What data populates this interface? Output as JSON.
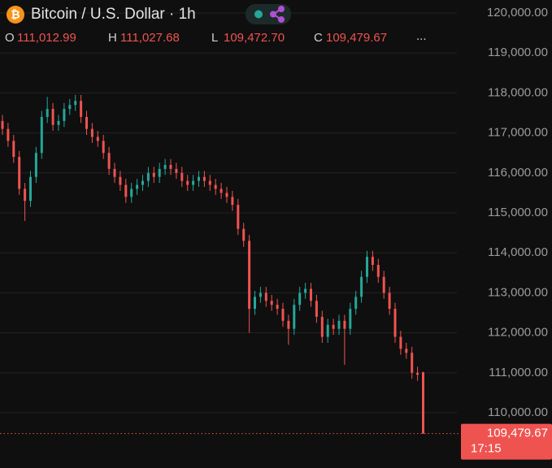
{
  "chart_data": {
    "type": "candlestick",
    "title": "Bitcoin / U.S. Dollar · 1h",
    "ohlc_legend": [
      {
        "key": "O",
        "value": "111,012.99"
      },
      {
        "key": "H",
        "value": "111,027.68"
      },
      {
        "key": "L",
        "value": "109,472.70"
      },
      {
        "key": "C",
        "value": "109,479.67"
      }
    ],
    "more": "...",
    "up_color": "#26a69a",
    "down_color": "#ef5350",
    "grid": true,
    "ylim": [
      108720,
      120325
    ],
    "yticks": [
      {
        "value": 110000,
        "label": "110,000.00"
      },
      {
        "value": 111000,
        "label": "111,000.00"
      },
      {
        "value": 112000,
        "label": "112,000.00"
      },
      {
        "value": 113000,
        "label": "113,000.00"
      },
      {
        "value": 114000,
        "label": "114,000.00"
      },
      {
        "value": 115000,
        "label": "115,000.00"
      },
      {
        "value": 116000,
        "label": "116,000.00"
      },
      {
        "value": 117000,
        "label": "117,000.00"
      },
      {
        "value": 118000,
        "label": "118,000.00"
      },
      {
        "value": 119000,
        "label": "119,000.00"
      },
      {
        "value": 120000,
        "label": "120,000.00"
      }
    ],
    "last_price": {
      "value": 109479.67,
      "label": "109,479.67"
    },
    "last_time": "17:15",
    "open": [
      117300,
      117100,
      116800,
      116400,
      115600,
      115300,
      115900,
      116500,
      117400,
      117600,
      117200,
      117300,
      117600,
      117700,
      117800,
      117400,
      117100,
      116900,
      116800,
      116500,
      116100,
      115900,
      115700,
      115400,
      115600,
      115700,
      115800,
      116000,
      115900,
      116100,
      116200,
      116100,
      116000,
      115800,
      115700,
      115800,
      115900,
      115800,
      115700,
      115600,
      115500,
      115400,
      115200,
      114600,
      114300,
      112600,
      112900,
      113000,
      112800,
      112700,
      112600,
      112300,
      112100,
      112700,
      113000,
      113100,
      112800,
      112400,
      111900,
      112200,
      112100,
      112300,
      112100,
      112600,
      112900,
      113400,
      113900,
      113700,
      113400,
      113000,
      112600,
      111900,
      111600,
      111500,
      111000,
      111012.99
    ],
    "high": [
      117450,
      117250,
      116950,
      116550,
      115750,
      116050,
      116650,
      117550,
      117900,
      117750,
      117450,
      117750,
      117850,
      117950,
      117950,
      117550,
      117250,
      117050,
      116950,
      116650,
      116250,
      116050,
      115850,
      115750,
      115850,
      115950,
      116150,
      116150,
      116250,
      116350,
      116350,
      116250,
      116150,
      115950,
      115950,
      116050,
      116050,
      115950,
      115850,
      115750,
      115650,
      115550,
      115350,
      114750,
      114450,
      113050,
      113150,
      113150,
      112950,
      112850,
      112750,
      112450,
      112850,
      113150,
      113250,
      113250,
      112950,
      112550,
      112350,
      112350,
      112450,
      112450,
      112750,
      113050,
      113550,
      114050,
      114050,
      113850,
      113550,
      113150,
      112750,
      112050,
      111750,
      111650,
      111150,
      111027.68
    ],
    "low": [
      116950,
      116650,
      116250,
      115450,
      114800,
      115150,
      115750,
      116350,
      117250,
      117050,
      117050,
      117150,
      117450,
      117550,
      117250,
      116950,
      116750,
      116650,
      116350,
      115950,
      115750,
      115550,
      115250,
      115250,
      115450,
      115550,
      115650,
      115750,
      115750,
      115950,
      115950,
      115850,
      115650,
      115550,
      115550,
      115650,
      115650,
      115550,
      115450,
      115350,
      115250,
      115050,
      114450,
      114150,
      112000,
      112450,
      112750,
      112650,
      112550,
      112450,
      112150,
      111700,
      111950,
      112550,
      112850,
      112650,
      112250,
      111750,
      111750,
      111950,
      111950,
      111200,
      111950,
      112450,
      112750,
      113250,
      113550,
      113250,
      112850,
      112450,
      111750,
      111450,
      111350,
      110850,
      110800,
      109472.7
    ],
    "close": [
      117100,
      116800,
      116400,
      115600,
      115300,
      115900,
      116500,
      117400,
      117600,
      117200,
      117300,
      117600,
      117700,
      117800,
      117400,
      117100,
      116900,
      116800,
      116500,
      116100,
      115900,
      115700,
      115400,
      115600,
      115700,
      115800,
      116000,
      115900,
      116100,
      116200,
      116100,
      116000,
      115800,
      115700,
      115800,
      115900,
      115800,
      115700,
      115600,
      115500,
      115400,
      115200,
      114600,
      114300,
      112600,
      112900,
      113000,
      112800,
      112700,
      112600,
      112300,
      112100,
      112700,
      113000,
      113100,
      112800,
      112400,
      111900,
      112200,
      112100,
      112300,
      112100,
      112600,
      112900,
      113400,
      113900,
      113700,
      113400,
      113000,
      112600,
      111900,
      111600,
      111500,
      111000,
      110950,
      109479.67
    ]
  }
}
